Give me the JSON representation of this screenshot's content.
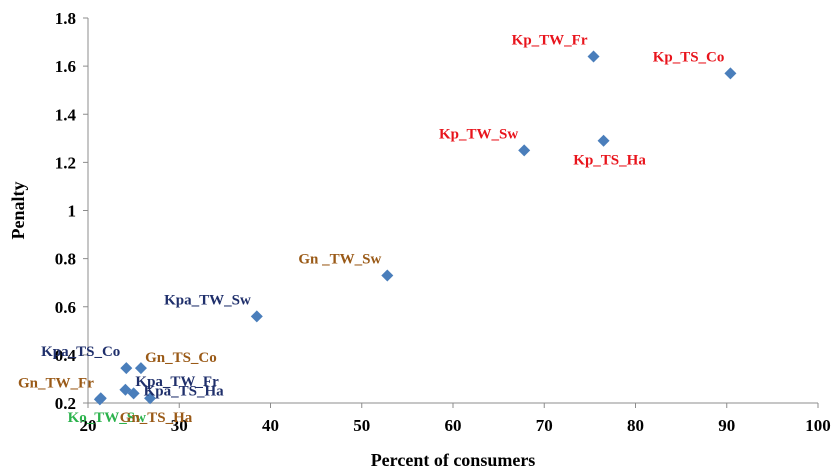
{
  "chart_data": {
    "type": "scatter",
    "xlabel": "Percent of consumers",
    "ylabel": "Penalty",
    "xlim": [
      20,
      100
    ],
    "ylim": [
      0.2,
      1.8
    ],
    "xticks": [
      "20",
      "30",
      "40",
      "50",
      "60",
      "70",
      "80",
      "90",
      "100"
    ],
    "yticks": [
      "0.2",
      "0.4",
      "0.6",
      "0.8",
      "1",
      "1.2",
      "1.4",
      "1.6",
      "1.8"
    ],
    "grid": false,
    "marker": "diamond",
    "marker_color": "#4a7ebb",
    "points": [
      {
        "label": "Kp_TW_Fr",
        "x": 75.4,
        "y": 1.64,
        "color": "#e8141c",
        "anchor": "above-left"
      },
      {
        "label": "Kp_TS_Co",
        "x": 90.4,
        "y": 1.57,
        "color": "#e8141c",
        "anchor": "above-left"
      },
      {
        "label": "Kp_TW_Sw",
        "x": 67.8,
        "y": 1.25,
        "color": "#e8141c",
        "anchor": "above-left"
      },
      {
        "label": "Kp_TS_Ha",
        "x": 76.5,
        "y": 1.29,
        "color": "#e8141c",
        "anchor": "below"
      },
      {
        "label": "Gn _TW_Sw",
        "x": 52.8,
        "y": 0.73,
        "color": "#9a5a17",
        "anchor": "above-left"
      },
      {
        "label": "Kpa_TW_Sw",
        "x": 38.5,
        "y": 0.56,
        "color": "#1f2f6b",
        "anchor": "above-left"
      },
      {
        "label": "Kpa_TS_Co",
        "x": 24.2,
        "y": 0.345,
        "color": "#1f2f6b",
        "anchor": "above-left"
      },
      {
        "label": "Gn_TS_Co",
        "x": 25.8,
        "y": 0.345,
        "color": "#9a5a17",
        "anchor": "above-right"
      },
      {
        "label": "Kpa_TW_Fr",
        "x": 24.1,
        "y": 0.255,
        "color": "#1f2f6b",
        "anchor": "right"
      },
      {
        "label": "Kpa_TS_Ha",
        "x": 25.0,
        "y": 0.24,
        "color": "#1f2f6b",
        "anchor": "right-far"
      },
      {
        "label": "Gn_TW_Fr",
        "x": 21.3,
        "y": 0.215,
        "color": "#9a5a17",
        "anchor": "above-left"
      },
      {
        "label": "Ko_TW_Sw",
        "x": 21.4,
        "y": 0.22,
        "color": "#2bb24c",
        "anchor": "below"
      },
      {
        "label": "Gn_TS_Ha",
        "x": 26.8,
        "y": 0.22,
        "color": "#9a5a17",
        "anchor": "below"
      }
    ]
  }
}
